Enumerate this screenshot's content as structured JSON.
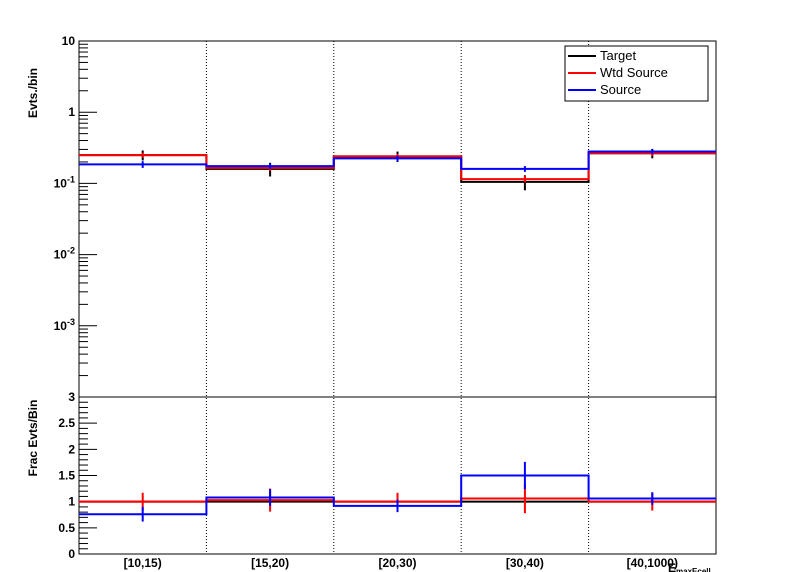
{
  "chart_data": [
    {
      "type": "line",
      "drawstyle": "steps",
      "ylabel": "Evts./bin",
      "yscale": "log",
      "ylim": [
        0.0001,
        10
      ],
      "ytick_labels": [
        "10",
        "1",
        "10-1",
        "10-2",
        "10-3"
      ],
      "categories": [
        "[10,15)",
        "[15,20)",
        "[20,30)",
        "[30,40)",
        "[40,1000)"
      ],
      "legend": {
        "placement": "top-right",
        "entries": [
          "Target",
          "Wtd Source",
          "Source"
        ]
      },
      "series": [
        {
          "name": "Target",
          "color": "#000000",
          "values": [
            0.25,
            0.16,
            0.24,
            0.105,
            0.265
          ],
          "errors": [
            0.04,
            0.035,
            0.04,
            0.025,
            0.04
          ]
        },
        {
          "name": "Wtd Source",
          "color": "#ff0000",
          "values": [
            0.25,
            0.165,
            0.24,
            0.115,
            0.265
          ],
          "errors": [
            0.02,
            0.015,
            0.02,
            0.012,
            0.02
          ]
        },
        {
          "name": "Source",
          "color": "#0000ff",
          "values": [
            0.185,
            0.175,
            0.225,
            0.16,
            0.28
          ],
          "errors": [
            0.02,
            0.015,
            0.02,
            0.015,
            0.02
          ]
        }
      ]
    },
    {
      "type": "line",
      "drawstyle": "steps",
      "ylabel": "Frac Evts/Bin",
      "ylim": [
        0,
        3
      ],
      "ytick_labels": [
        "0",
        "0.5",
        "1",
        "1.5",
        "2",
        "2.5",
        "3"
      ],
      "categories": [
        "[10,15)",
        "[15,20)",
        "[20,30)",
        "[30,40)",
        "[40,1000)"
      ],
      "xlabel": "E",
      "xlabel_sub": "maxEcell",
      "series": [
        {
          "name": "Target",
          "color": "#000000",
          "values": [
            1.0,
            1.0,
            1.0,
            1.0,
            1.0
          ],
          "errors": [
            0,
            0,
            0,
            0,
            0
          ]
        },
        {
          "name": "Wtd Source",
          "color": "#ff0000",
          "values": [
            1.0,
            1.03,
            1.0,
            1.06,
            1.0
          ],
          "errors": [
            0.17,
            0.22,
            0.17,
            0.28,
            0.17
          ]
        },
        {
          "name": "Source",
          "color": "#0000ff",
          "values": [
            0.76,
            1.08,
            0.92,
            1.5,
            1.06
          ],
          "errors": [
            0.14,
            0.16,
            0.12,
            0.26,
            0.12
          ]
        }
      ]
    }
  ]
}
